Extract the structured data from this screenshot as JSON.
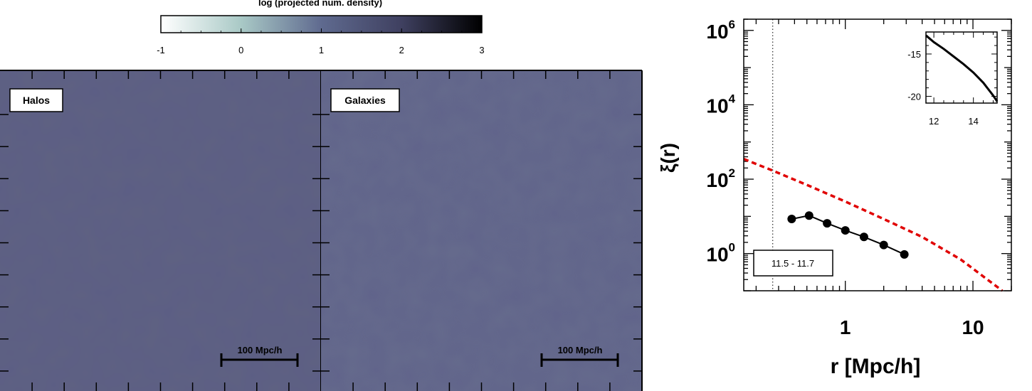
{
  "colorbar": {
    "title": "log (projected num. density)",
    "ticks": [
      "-1",
      "0",
      "1",
      "2",
      "3"
    ],
    "range": [
      -1,
      3
    ],
    "colors": [
      "#ffffff",
      "#a9c9c6",
      "#5f6a8f",
      "#3f4060",
      "#000000"
    ]
  },
  "panels": [
    {
      "label": "Halos",
      "scale_bar": "100 Mpc/h",
      "fill_color": "#5e6182",
      "field_level": 1.05
    },
    {
      "label": "Galaxies",
      "scale_bar": "100 Mpc/h",
      "fill_color": "#656a8c",
      "field_level": 0.95
    }
  ],
  "chart_data": {
    "type": "line",
    "xlabel": "r [Mpc/h]",
    "ylabel": "ξ(r)",
    "xscale": "log",
    "yscale": "log",
    "xlim": [
      0.16,
      20
    ],
    "ylim": [
      0.1,
      2000000
    ],
    "x_ticks": [
      "1",
      "10"
    ],
    "y_ticks": [
      "10^6",
      "10^4",
      "10^2",
      "10^0"
    ],
    "legend_label": "11.5 - 11.7",
    "vertical_line_x": 0.27,
    "series": [
      {
        "style": "black-line-with-markers",
        "color": "#000000",
        "x": [
          0.38,
          0.52,
          0.72,
          1.0,
          1.4,
          2.0,
          2.9
        ],
        "y": [
          8.5,
          10.5,
          6.5,
          4.2,
          2.8,
          1.7,
          0.95
        ]
      },
      {
        "style": "red-dashed",
        "color": "#e00000",
        "x": [
          0.16,
          0.27,
          0.5,
          1.0,
          2.0,
          4.0,
          8.0,
          17.0
        ],
        "y": [
          350,
          170,
          70,
          25,
          8.5,
          2.8,
          0.7,
          0.09
        ]
      }
    ],
    "inset": {
      "type": "line",
      "xlim": [
        11.6,
        15.2
      ],
      "ylim": [
        -20.8,
        -12.4
      ],
      "x_ticks": [
        "12",
        "14"
      ],
      "y_ticks": [
        "-15",
        "-20"
      ],
      "series": [
        {
          "color": "#000000",
          "x": [
            11.6,
            12.0,
            12.5,
            13.0,
            13.5,
            14.0,
            14.5,
            15.0,
            15.2
          ],
          "y": [
            -12.8,
            -13.6,
            -14.4,
            -15.3,
            -16.2,
            -17.2,
            -18.4,
            -19.9,
            -20.6
          ]
        }
      ]
    }
  }
}
